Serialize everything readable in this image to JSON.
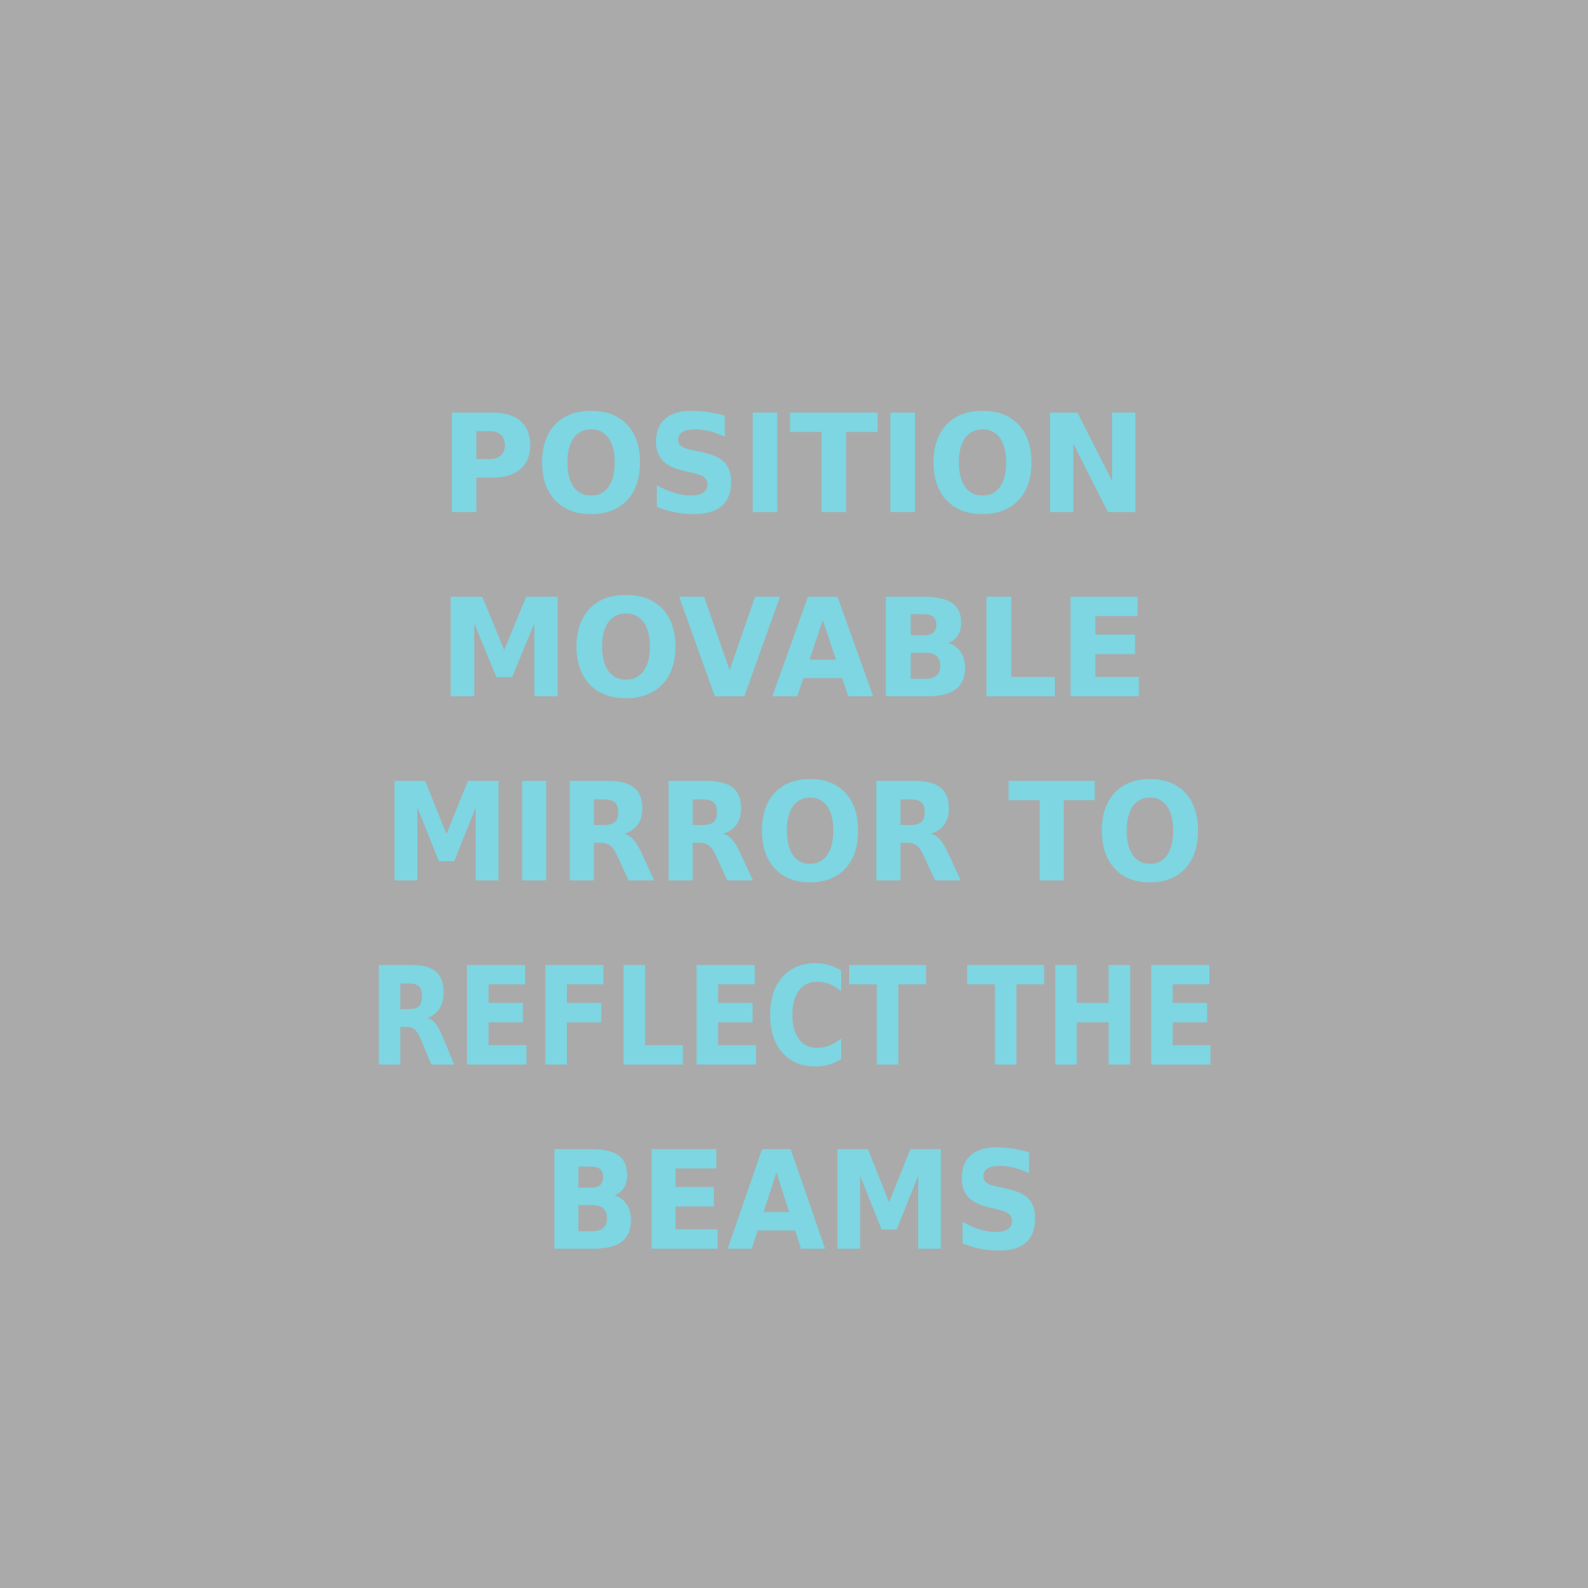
{
  "screen": {
    "background_color": "#aaaaaa",
    "text_color": "#7dd6e1"
  },
  "instruction": {
    "lines": [
      "POSITION",
      "MOVABLE",
      "MIRROR TO",
      "REFLECT THE",
      "BEAMS"
    ]
  }
}
